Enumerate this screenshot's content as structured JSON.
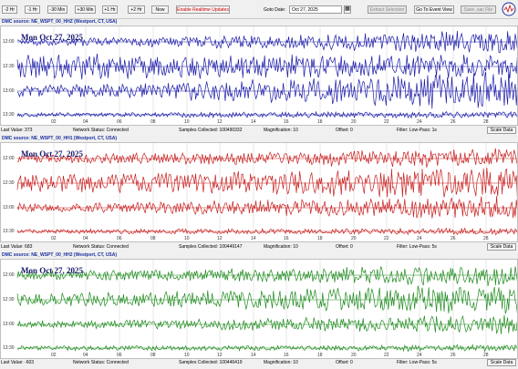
{
  "toolbar": {
    "buttons": [
      "-2 Hr",
      "-1 Hr",
      "-30 Min",
      "+30 Min",
      "+1 Hr",
      "+2 Hr",
      "Now"
    ],
    "realtime_label": "Enable Realtime Updates",
    "goto_label": "Goto Date:",
    "goto_value": "Oct 27, 2025",
    "extract_label": "Extract Selection",
    "event_label": "Go To Event View",
    "save_label": "Save .sac File"
  },
  "panels": [
    {
      "title": "DMC source: NE_WSPT_00_HHZ (Westport, CT, USA)",
      "date": "Mon Oct 27, 2025",
      "color": "#1a1aa8",
      "last_value": "Last Value: 373",
      "network_status": "Network Status:  Connected",
      "samples": "Samples Collected:  100490332",
      "magnification": "Magnification:  10",
      "offset": "Offset:  0",
      "filter": "Filter:  Low-Pass: 1s",
      "scale_label": "Scale Data"
    },
    {
      "title": "DMC source: NE_WSPT_00_HH1 (Westport, CT, USA)",
      "date": "Mon Oct 27, 2025",
      "color": "#c81e1e",
      "last_value": "Last Value: 683",
      "network_status": "Network Status:  Connected",
      "samples": "Samples Collected:  100449147",
      "magnification": "Magnification:  10",
      "offset": "Offset:  0",
      "filter": "Filter:  Low-Pass: 5s",
      "scale_label": "Scale Data"
    },
    {
      "title": "DMC source: NE_WSPT_00_HH2 (Westport, CT, USA)",
      "date": "Mon Oct 27, 2025",
      "color": "#1e8a1e",
      "last_value": "Last Value: -603",
      "network_status": "Network Status:  Connected",
      "samples": "Samples Collected:  100446419",
      "magnification": "Magnification:  10",
      "offset": "Offset:  0",
      "filter": "Filter:  Low-Pass: 5s",
      "scale_label": "Scale Data"
    }
  ],
  "time_labels": [
    "12:00",
    "12:30",
    "13:00",
    "13:30"
  ],
  "x_ticks": [
    "02",
    "04",
    "06",
    "08",
    "10",
    "12",
    "14",
    "16",
    "18",
    "20",
    "22",
    "24",
    "26",
    "28"
  ]
}
